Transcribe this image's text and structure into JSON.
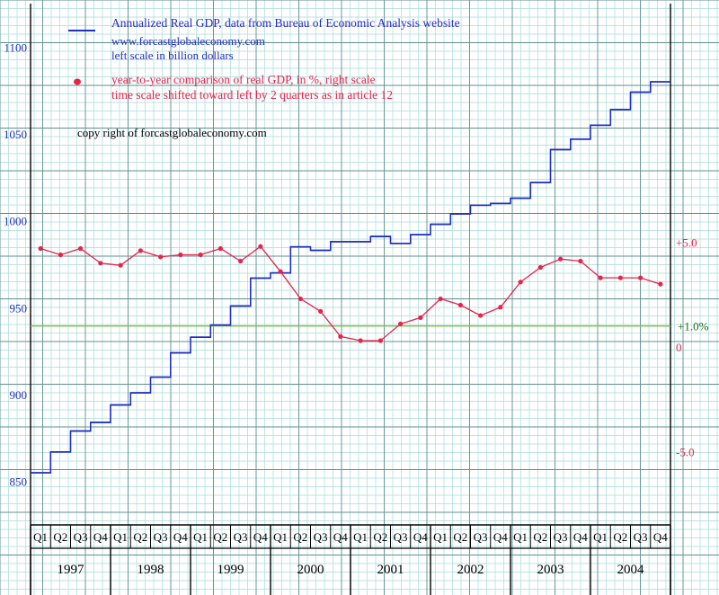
{
  "chart_data": {
    "type": "line",
    "annotations": {
      "series1_legend": "Annualized Real GDP, data from Bureau of Economic Analysis website",
      "website": "www.forcastglobaleconomy.com",
      "left_scale_note": "left scale in billion dollars",
      "series2_legend": "year-to-year comparison of real GDP, in %, right scale",
      "time_shift_note": "time scale shifted toward left by 2 quarters as in article 12",
      "copyright": "copy right of forcastglobaleconomy.com"
    },
    "left_axis": {
      "unit": "billion dollars",
      "ylim": [
        825,
        1125
      ],
      "ticks": [
        "850",
        "900",
        "950",
        "1000",
        "1050",
        "1100"
      ]
    },
    "right_axis": {
      "unit": "%",
      "ylim": [
        -8.5,
        16.4
      ],
      "ticks": [
        {
          "value": 5.0,
          "label": "+5.0"
        },
        {
          "value": 0,
          "label": "0"
        },
        {
          "value": -5.0,
          "label": "-5.0"
        }
      ]
    },
    "reference_line": {
      "value": 1.0,
      "label": "+1.0%",
      "color": "#7fbf3f"
    },
    "quarter_labels": [
      "Q1",
      "Q2",
      "Q3",
      "Q4",
      "Q1",
      "Q2",
      "Q3",
      "Q4",
      "Q1",
      "Q2",
      "Q3",
      "Q4",
      "Q1",
      "Q2",
      "Q3",
      "Q4",
      "Q1",
      "Q2",
      "Q3",
      "Q4",
      "Q1",
      "Q2",
      "Q3",
      "Q4",
      "Q1",
      "Q2",
      "Q3",
      "Q4",
      "Q1",
      "Q2",
      "Q3",
      "Q4"
    ],
    "years": [
      "1997",
      "1998",
      "1999",
      "2000",
      "2001",
      "2002",
      "2003",
      "2004"
    ],
    "series": [
      {
        "name": "Annualized Real GDP",
        "axis": "left",
        "style": "step",
        "color": "#1f2fbf",
        "values": [
          855,
          867,
          879,
          884,
          894,
          901,
          910,
          924,
          933,
          940,
          951,
          967,
          970,
          985,
          983,
          988,
          988,
          991,
          987,
          992,
          998,
          1004,
          1009,
          1010,
          1013,
          1022,
          1041,
          1047,
          1055,
          1064,
          1074,
          1080
        ]
      },
      {
        "name": "year-to-year comparison of real GDP",
        "axis": "right",
        "style": "line-markers",
        "color": "#e8234a",
        "values": [
          4.7,
          4.4,
          4.7,
          4.0,
          3.9,
          4.6,
          4.3,
          4.4,
          4.4,
          4.7,
          4.1,
          4.8,
          3.6,
          2.3,
          1.7,
          0.5,
          0.3,
          0.3,
          1.1,
          1.4,
          2.3,
          2.0,
          1.5,
          1.9,
          3.1,
          3.8,
          4.2,
          4.1,
          3.3,
          3.3,
          3.3,
          3.0
        ]
      }
    ],
    "grid": true,
    "colors": {
      "grid_minor": "#a9dada",
      "grid_major": "#5f8f8f",
      "left_ticks": "#1f2fbf",
      "right_ticks": "#e8234a",
      "copyright": "#000000"
    }
  }
}
